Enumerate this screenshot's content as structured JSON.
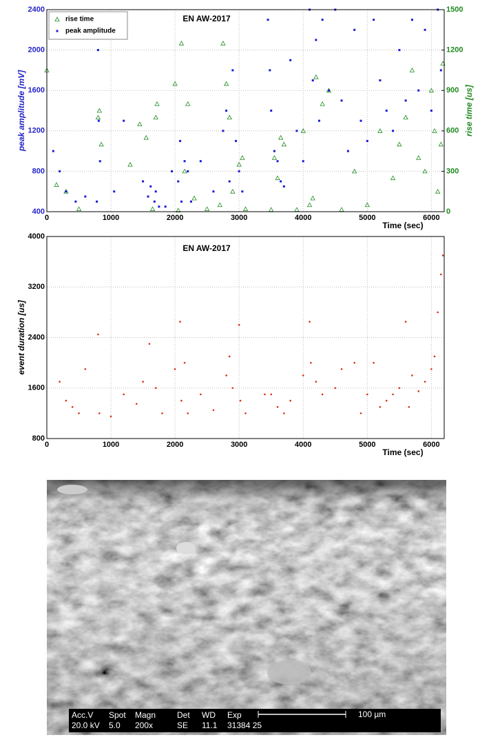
{
  "chart_data": [
    {
      "type": "scatter",
      "title": "EN AW-2017",
      "x_label": "Time (sec)",
      "y_label": "peak amplitude [mV]",
      "y2_label": "rise time [us]",
      "xlim": [
        0,
        6200
      ],
      "xticks": [
        0,
        1000,
        2000,
        3000,
        4000,
        5000,
        6000
      ],
      "ylim": [
        400,
        2400
      ],
      "yticks": [
        400,
        800,
        1200,
        1600,
        2000,
        2400
      ],
      "y2lim": [
        0,
        1500
      ],
      "y2ticks": [
        0,
        300,
        600,
        900,
        1200,
        1500
      ],
      "y_color": "#2323c8",
      "y2_color": "#1e8a1e",
      "grid": true,
      "legend": "upper left",
      "series": [
        {
          "name": "rise time",
          "color": "#1e8a1e",
          "marker": "triangle",
          "axis": "y2",
          "x": [
            0,
            150,
            300,
            500,
            800,
            820,
            850,
            1300,
            1450,
            1550,
            1650,
            1700,
            1720,
            2000,
            2050,
            2100,
            2150,
            2200,
            2300,
            2500,
            2700,
            2750,
            2800,
            2850,
            2900,
            3000,
            3050,
            3100,
            3500,
            3550,
            3600,
            3650,
            3700,
            3900,
            4000,
            4100,
            4150,
            4200,
            4300,
            4400,
            4600,
            4800,
            5000,
            5200,
            5400,
            5500,
            5600,
            5700,
            5800,
            5900,
            6000,
            6050,
            6100,
            6150,
            6180
          ],
          "values": [
            1050,
            200,
            150,
            20,
            700,
            750,
            500,
            350,
            650,
            550,
            20,
            700,
            800,
            950,
            10,
            1250,
            300,
            800,
            100,
            20,
            50,
            1250,
            950,
            700,
            150,
            350,
            400,
            20,
            15,
            400,
            250,
            550,
            500,
            15,
            600,
            50,
            100,
            1000,
            800,
            900,
            15,
            300,
            50,
            600,
            250,
            500,
            700,
            1050,
            400,
            300,
            900,
            600,
            150,
            500,
            1100
          ]
        },
        {
          "name": "peak amplitude",
          "color": "#1a1ad8",
          "marker": "square",
          "x": [
            100,
            200,
            300,
            450,
            600,
            780,
            800,
            810,
            830,
            1050,
            1200,
            1500,
            1580,
            1620,
            1680,
            1700,
            1750,
            1850,
            1950,
            2050,
            2080,
            2100,
            2150,
            2200,
            2250,
            2400,
            2600,
            2750,
            2800,
            2850,
            2900,
            2950,
            3000,
            3050,
            3450,
            3480,
            3500,
            3550,
            3600,
            3650,
            3700,
            3800,
            3900,
            4000,
            4100,
            4150,
            4200,
            4250,
            4300,
            4400,
            4500,
            4600,
            4700,
            4800,
            4900,
            5000,
            5100,
            5200,
            5300,
            5400,
            5500,
            5600,
            5700,
            5800,
            5900,
            6000,
            6100,
            6150
          ],
          "values": [
            1000,
            800,
            600,
            500,
            550,
            500,
            2000,
            1300,
            900,
            600,
            1300,
            700,
            550,
            650,
            500,
            600,
            450,
            450,
            800,
            700,
            1100,
            500,
            900,
            800,
            500,
            900,
            600,
            1200,
            1400,
            700,
            1800,
            1100,
            800,
            600,
            2300,
            1800,
            1400,
            1000,
            900,
            700,
            650,
            1900,
            1200,
            900,
            2400,
            1700,
            2100,
            1300,
            2300,
            1600,
            2400,
            1500,
            1000,
            2200,
            1300,
            1100,
            2300,
            1700,
            1400,
            1200,
            2000,
            1500,
            2300,
            1600,
            2200,
            1400,
            2400,
            1800
          ]
        }
      ]
    },
    {
      "type": "scatter",
      "title": "EN AW-2017",
      "x_label": "Time (sec)",
      "y_label": "event duration [us]",
      "xlim": [
        0,
        6200
      ],
      "xticks": [
        0,
        1000,
        2000,
        3000,
        4000,
        5000,
        6000
      ],
      "ylim": [
        800,
        4000
      ],
      "yticks": [
        800,
        1600,
        2400,
        3200,
        4000
      ],
      "y_color": "#000000",
      "grid": true,
      "series": [
        {
          "color": "#d83010",
          "marker": "dot",
          "x": [
            200,
            300,
            400,
            500,
            600,
            800,
            820,
            1000,
            1200,
            1400,
            1500,
            1600,
            1700,
            1800,
            2000,
            2080,
            2100,
            2150,
            2200,
            2400,
            2600,
            2800,
            2850,
            2900,
            3000,
            3020,
            3100,
            3400,
            3500,
            3600,
            3700,
            3800,
            4000,
            4100,
            4120,
            4200,
            4300,
            4500,
            4600,
            4800,
            4900,
            5000,
            5100,
            5200,
            5300,
            5400,
            5500,
            5600,
            5650,
            5700,
            5800,
            5900,
            6000,
            6050,
            6100,
            6150,
            6180
          ],
          "values": [
            1700,
            1400,
            1300,
            1200,
            1900,
            2450,
            1200,
            1150,
            1500,
            1350,
            1700,
            2300,
            1600,
            1200,
            1900,
            2650,
            1400,
            2000,
            1200,
            1500,
            1250,
            1800,
            2100,
            1600,
            2600,
            1400,
            1200,
            1500,
            1500,
            1300,
            1200,
            1400,
            1800,
            2650,
            2000,
            1700,
            1500,
            1600,
            1900,
            2000,
            1200,
            1500,
            2000,
            1300,
            1400,
            1500,
            1600,
            2650,
            1300,
            1800,
            1550,
            1700,
            1900,
            2100,
            2800,
            3400,
            3700
          ]
        }
      ]
    }
  ],
  "sem_image": {
    "labels": [
      "Acc.V",
      "Spot",
      "Magn",
      "Det",
      "WD",
      "Exp"
    ],
    "values": [
      "20.0 kV",
      "5.0",
      "200x",
      "SE",
      "11.1",
      "31384 25"
    ],
    "scale_bar": "100 µm"
  }
}
